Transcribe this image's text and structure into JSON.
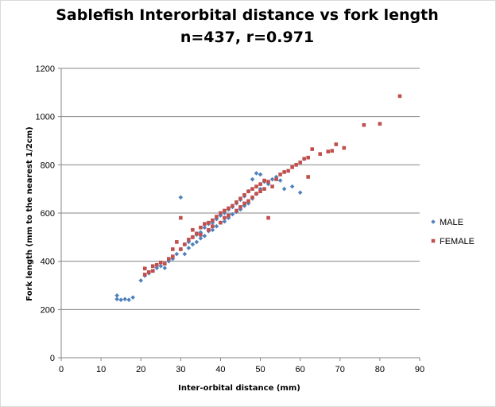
{
  "chart_data": {
    "type": "scatter",
    "title": "Sablefish Interorbital distance vs fork length",
    "subtitle": "n=437, r=0.971",
    "xlabel": "Inter-orbital distance (mm)",
    "ylabel": "Fork length (mm to the nearest 1/2cm)",
    "xlim": [
      0,
      90
    ],
    "ylim": [
      0,
      1200
    ],
    "xticks": [
      0,
      10,
      20,
      30,
      40,
      50,
      60,
      70,
      80,
      90
    ],
    "yticks": [
      0,
      200,
      400,
      600,
      800,
      1000,
      1200
    ],
    "grid": "horizontal",
    "legend": "right",
    "series": [
      {
        "name": "MALE",
        "color": "#4f81bd",
        "marker": "diamond",
        "points": [
          [
            14,
            258
          ],
          [
            14,
            243
          ],
          [
            15,
            240
          ],
          [
            16,
            243
          ],
          [
            17,
            240
          ],
          [
            18,
            250
          ],
          [
            20,
            320
          ],
          [
            21,
            340
          ],
          [
            22,
            350
          ],
          [
            23,
            360
          ],
          [
            24,
            372
          ],
          [
            25,
            380
          ],
          [
            26,
            372
          ],
          [
            27,
            400
          ],
          [
            28,
            410
          ],
          [
            29,
            430
          ],
          [
            30,
            665
          ],
          [
            30,
            450
          ],
          [
            31,
            470
          ],
          [
            31,
            430
          ],
          [
            32,
            480
          ],
          [
            32,
            455
          ],
          [
            33,
            500
          ],
          [
            33,
            470
          ],
          [
            34,
            510
          ],
          [
            34,
            480
          ],
          [
            35,
            520
          ],
          [
            35,
            495
          ],
          [
            36,
            540
          ],
          [
            36,
            505
          ],
          [
            37,
            555
          ],
          [
            37,
            525
          ],
          [
            38,
            560
          ],
          [
            38,
            530
          ],
          [
            39,
            575
          ],
          [
            39,
            545
          ],
          [
            40,
            590
          ],
          [
            40,
            560
          ],
          [
            41,
            600
          ],
          [
            41,
            565
          ],
          [
            42,
            615
          ],
          [
            42,
            580
          ],
          [
            43,
            625
          ],
          [
            43,
            595
          ],
          [
            44,
            640
          ],
          [
            44,
            605
          ],
          [
            45,
            655
          ],
          [
            45,
            615
          ],
          [
            46,
            670
          ],
          [
            46,
            630
          ],
          [
            47,
            690
          ],
          [
            47,
            640
          ],
          [
            48,
            740
          ],
          [
            48,
            660
          ],
          [
            49,
            765
          ],
          [
            49,
            680
          ],
          [
            50,
            760
          ],
          [
            50,
            700
          ],
          [
            51,
            730
          ],
          [
            52,
            720
          ],
          [
            53,
            740
          ],
          [
            54,
            750
          ],
          [
            55,
            735
          ],
          [
            56,
            700
          ],
          [
            58,
            710
          ],
          [
            60,
            685
          ]
        ]
      },
      {
        "name": "FEMALE",
        "color": "#c0504d",
        "marker": "square",
        "points": [
          [
            21,
            370
          ],
          [
            21,
            345
          ],
          [
            22,
            355
          ],
          [
            23,
            360
          ],
          [
            23,
            380
          ],
          [
            24,
            385
          ],
          [
            25,
            395
          ],
          [
            26,
            390
          ],
          [
            27,
            410
          ],
          [
            28,
            420
          ],
          [
            28,
            450
          ],
          [
            29,
            480
          ],
          [
            30,
            580
          ],
          [
            30,
            450
          ],
          [
            31,
            470
          ],
          [
            32,
            490
          ],
          [
            33,
            500
          ],
          [
            33,
            530
          ],
          [
            34,
            515
          ],
          [
            35,
            540
          ],
          [
            35,
            510
          ],
          [
            36,
            555
          ],
          [
            37,
            560
          ],
          [
            37,
            530
          ],
          [
            38,
            570
          ],
          [
            38,
            545
          ],
          [
            39,
            585
          ],
          [
            40,
            600
          ],
          [
            40,
            560
          ],
          [
            41,
            610
          ],
          [
            41,
            580
          ],
          [
            42,
            620
          ],
          [
            42,
            590
          ],
          [
            43,
            630
          ],
          [
            44,
            645
          ],
          [
            44,
            610
          ],
          [
            45,
            660
          ],
          [
            45,
            625
          ],
          [
            46,
            675
          ],
          [
            46,
            640
          ],
          [
            47,
            690
          ],
          [
            47,
            650
          ],
          [
            48,
            700
          ],
          [
            48,
            665
          ],
          [
            49,
            710
          ],
          [
            49,
            680
          ],
          [
            50,
            720
          ],
          [
            50,
            690
          ],
          [
            51,
            735
          ],
          [
            51,
            700
          ],
          [
            52,
            730
          ],
          [
            52,
            580
          ],
          [
            53,
            710
          ],
          [
            54,
            740
          ],
          [
            55,
            760
          ],
          [
            56,
            770
          ],
          [
            57,
            775
          ],
          [
            58,
            790
          ],
          [
            59,
            800
          ],
          [
            60,
            810
          ],
          [
            61,
            825
          ],
          [
            62,
            830
          ],
          [
            62,
            750
          ],
          [
            63,
            865
          ],
          [
            65,
            845
          ],
          [
            67,
            855
          ],
          [
            68,
            858
          ],
          [
            69,
            885
          ],
          [
            71,
            870
          ],
          [
            76,
            965
          ],
          [
            80,
            970
          ],
          [
            85,
            1085
          ]
        ]
      }
    ]
  }
}
